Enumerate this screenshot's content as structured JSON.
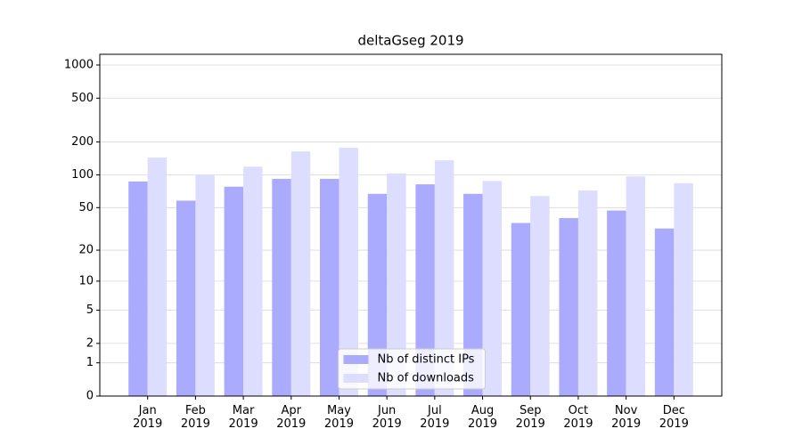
{
  "chart_data": {
    "type": "bar",
    "title": "deltaGseg 2019",
    "categories": [
      "Jan\n2019",
      "Feb\n2019",
      "Mar\n2019",
      "Apr\n2019",
      "May\n2019",
      "Jun\n2019",
      "Jul\n2019",
      "Aug\n2019",
      "Sep\n2019",
      "Oct\n2019",
      "Nov\n2019",
      "Dec\n2019"
    ],
    "series": [
      {
        "name": "Nb of distinct IPs",
        "color": "#aaaaff",
        "values": [
          87,
          58,
          78,
          92,
          92,
          67,
          82,
          67,
          36,
          40,
          47,
          32
        ]
      },
      {
        "name": "Nb of downloads",
        "color": "#ddddff",
        "values": [
          144,
          100,
          119,
          164,
          177,
          103,
          136,
          88,
          64,
          72,
          97,
          84
        ]
      }
    ],
    "yscale": "log1p",
    "ylim": [
      0,
      1250
    ],
    "yticks": [
      0,
      1,
      2,
      5,
      10,
      20,
      50,
      100,
      200,
      500,
      1000
    ],
    "grid": true,
    "legend": "lower center"
  }
}
